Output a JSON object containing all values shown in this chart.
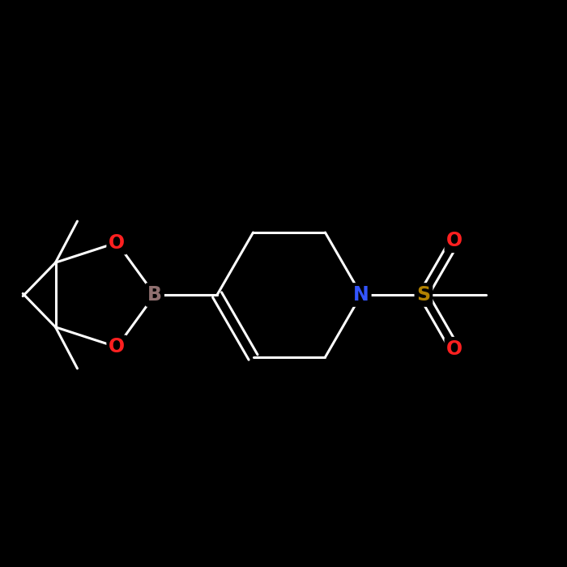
{
  "bg_color": "#000000",
  "bond_color": "#ffffff",
  "atom_colors": {
    "B": "#907070",
    "O": "#ff2020",
    "N": "#3355ff",
    "S": "#b08000"
  },
  "bond_width": 2.2,
  "font_size": 17
}
